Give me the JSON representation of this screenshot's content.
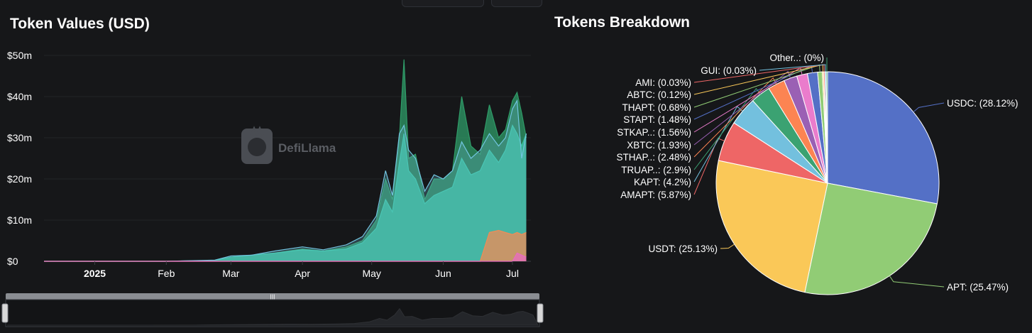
{
  "header_buttons": [
    "",
    ""
  ],
  "area_chart": {
    "title": "Token Values (USD)",
    "watermark": "DefiLlama"
  },
  "pie_chart": {
    "title": "Tokens Breakdown"
  },
  "colors": {
    "background": "#161719",
    "teal_area": "#3cc6a6",
    "green_area": "#2a8f5e",
    "light_blue_line": "#72c5e0",
    "orange_area": "#f28b56"
  },
  "chart_data": [
    {
      "type": "area",
      "title": "Token Values (USD)",
      "y_ticks": [
        "$0",
        "$10m",
        "$20m",
        "$30m",
        "$40m",
        "$50m"
      ],
      "ylim": [
        0,
        50
      ],
      "x_ticks": [
        "2025",
        "Feb",
        "Mar",
        "Apr",
        "May",
        "Jun",
        "Jul"
      ],
      "x_tick_bold": [
        true,
        false,
        false,
        false,
        false,
        false,
        false
      ],
      "x": [
        "2024-12-10",
        "2025-01-01",
        "2025-02-01",
        "2025-02-22",
        "2025-03-01",
        "2025-03-10",
        "2025-03-20",
        "2025-04-01",
        "2025-04-10",
        "2025-04-20",
        "2025-04-27",
        "2025-05-03",
        "2025-05-07",
        "2025-05-10",
        "2025-05-13",
        "2025-05-15",
        "2025-05-17",
        "2025-05-20",
        "2025-05-24",
        "2025-05-28",
        "2025-06-01",
        "2025-06-05",
        "2025-06-09",
        "2025-06-13",
        "2025-06-17",
        "2025-06-21",
        "2025-06-25",
        "2025-06-28",
        "2025-07-01",
        "2025-07-03",
        "2025-07-05",
        "2025-07-07"
      ],
      "series": [
        {
          "color": "#2f9c68",
          "values": [
            0,
            0,
            0,
            0.2,
            1,
            1.5,
            2,
            3,
            2.5,
            3.5,
            5,
            10,
            20,
            15,
            30,
            49,
            25,
            26,
            15,
            20,
            20,
            22,
            40,
            28,
            26,
            38,
            30,
            32,
            39,
            41,
            36,
            30
          ]
        },
        {
          "color": "#3cc6a6",
          "values": [
            0,
            0,
            0,
            0.2,
            1,
            1.5,
            2,
            2.8,
            2.5,
            3,
            4.5,
            8,
            15,
            12,
            24,
            31,
            22,
            20,
            14,
            16,
            17,
            18,
            25,
            21,
            22,
            27,
            24,
            27,
            33,
            31,
            28,
            31
          ]
        },
        {
          "color": "#72c5e0",
          "values": [
            0,
            0,
            0,
            0.3,
            1.3,
            1.5,
            2.5,
            3.5,
            2.8,
            4,
            6,
            11,
            22,
            16,
            31,
            33,
            27,
            25,
            17,
            21,
            20,
            22,
            29,
            25,
            27,
            31,
            28,
            30,
            37,
            39,
            25,
            31
          ]
        },
        {
          "color": "#f28b56",
          "values": [
            0,
            0,
            0,
            0,
            0,
            0,
            0,
            0,
            0,
            0,
            0,
            0,
            0,
            0,
            0,
            0,
            0,
            0,
            0,
            0,
            0,
            0,
            0,
            0,
            0,
            7,
            7.5,
            7,
            6.5,
            7,
            6.5,
            7
          ]
        },
        {
          "color": "#e86bc2",
          "values": [
            0,
            0,
            0,
            0,
            0,
            0,
            0,
            0,
            0,
            0,
            0,
            0,
            0,
            0,
            0,
            0,
            0,
            0,
            0,
            0,
            0,
            0,
            0,
            0,
            0,
            0,
            0,
            0,
            0,
            2,
            1.5,
            1
          ]
        }
      ]
    },
    {
      "type": "pie",
      "title": "Tokens Breakdown",
      "slices": [
        {
          "label": "USDC: (28.12%)",
          "value": 28.12,
          "color": "#5470c6"
        },
        {
          "label": "APT: (25.47%)",
          "value": 25.47,
          "color": "#91cc75"
        },
        {
          "label": "USDT: (25.13%)",
          "value": 25.13,
          "color": "#fac858"
        },
        {
          "label": "AMAPT: (5.87%)",
          "value": 5.87,
          "color": "#ee6666"
        },
        {
          "label": "KAPT: (4.2%)",
          "value": 4.2,
          "color": "#73c0de"
        },
        {
          "label": "TRUAP..: (2.9%)",
          "value": 2.9,
          "color": "#3ba272"
        },
        {
          "label": "STHAP..: (2.48%)",
          "value": 2.48,
          "color": "#fc8452"
        },
        {
          "label": "XBTC: (1.93%)",
          "value": 1.93,
          "color": "#9a60b4"
        },
        {
          "label": "STKAP..: (1.56%)",
          "value": 1.56,
          "color": "#ea7ccc"
        },
        {
          "label": "STAPT: (1.48%)",
          "value": 1.48,
          "color": "#5470c6"
        },
        {
          "label": "THAPT: (0.68%)",
          "value": 0.68,
          "color": "#91cc75"
        },
        {
          "label": "ABTC: (0.12%)",
          "value": 0.12,
          "color": "#fac858"
        },
        {
          "label": "AMI: (0.03%)",
          "value": 0.03,
          "color": "#ee6666"
        },
        {
          "label": "GUI: (0.03%)",
          "value": 0.03,
          "color": "#73c0de"
        },
        {
          "label": "Other..: (0%)",
          "value": 0,
          "color": "#3ba272"
        }
      ]
    }
  ]
}
